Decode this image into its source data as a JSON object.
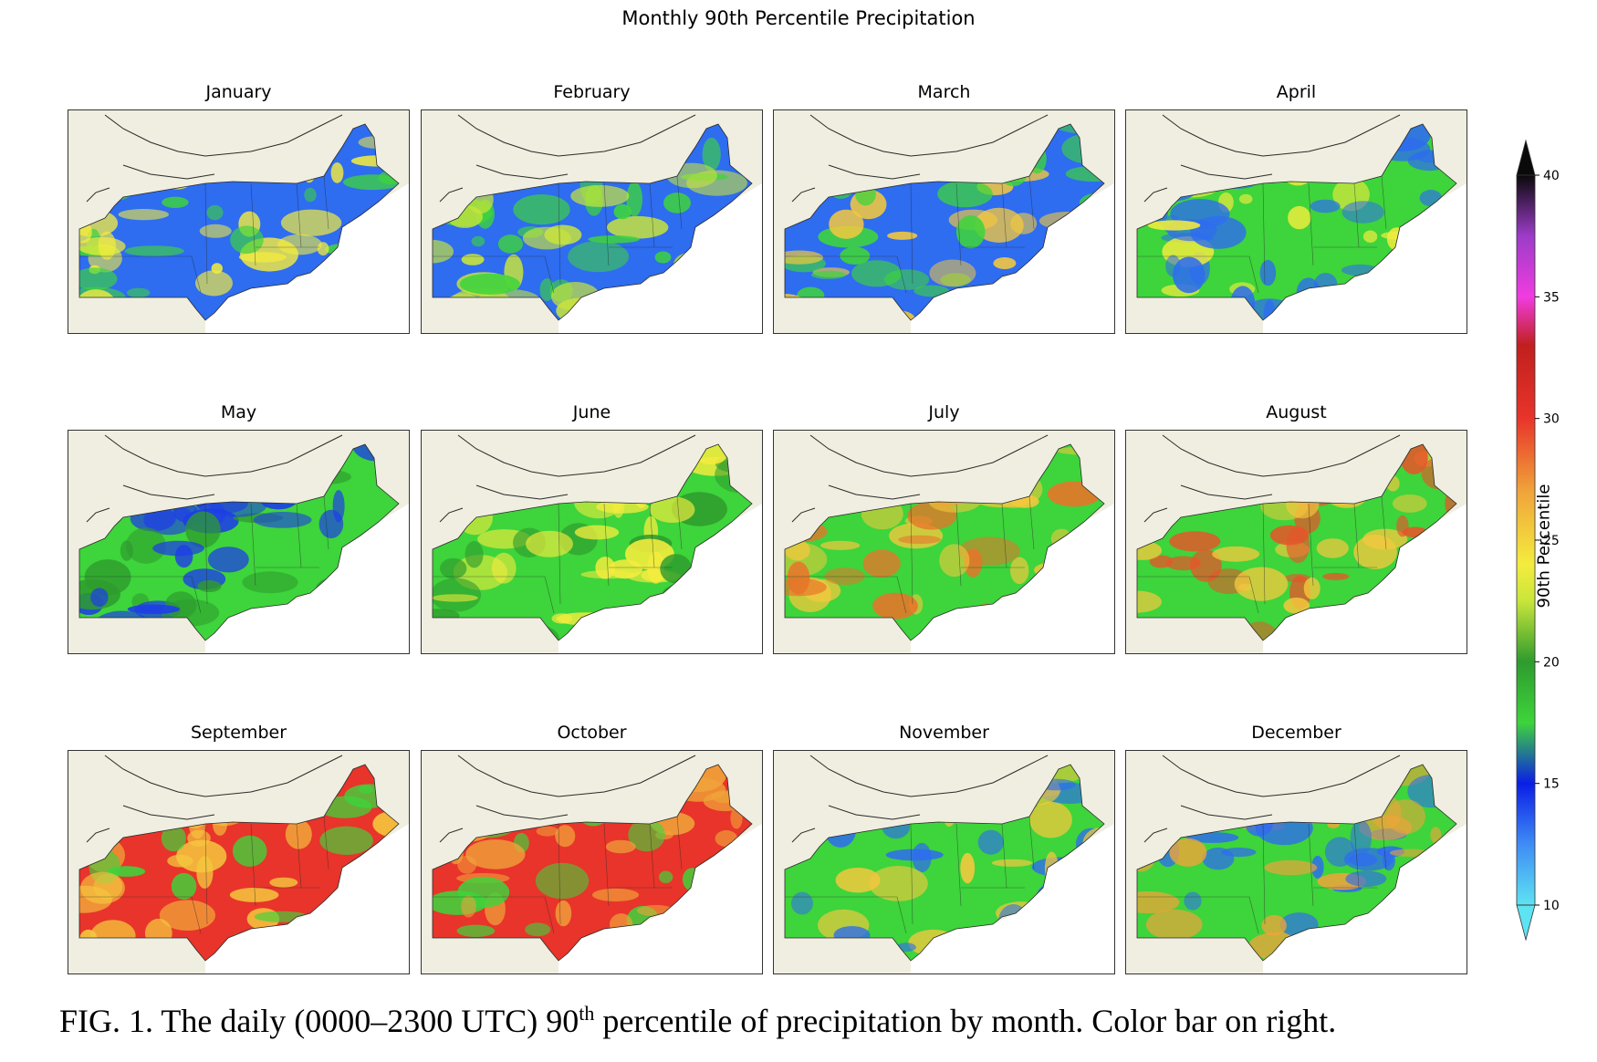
{
  "figure": {
    "title": "Monthly 90th Percentile Precipitation",
    "caption_parts": {
      "before": "FIG. 1. The daily (0000–2300 UTC) 90",
      "superscript": "th",
      "after": " percentile of precipitation by month. Color bar on right."
    }
  },
  "colorbar": {
    "label": "90th Percentile",
    "min": 10,
    "max": 40,
    "ticks": [
      "10",
      "15",
      "20",
      "25",
      "30",
      "35",
      "40"
    ],
    "extend": "both",
    "stops": [
      {
        "value": 10,
        "color": "#5ee3f2"
      },
      {
        "value": 12.5,
        "color": "#3f8cf5"
      },
      {
        "value": 15,
        "color": "#0a1ee6"
      },
      {
        "value": 17.5,
        "color": "#3ed43b"
      },
      {
        "value": 20,
        "color": "#2e9b2e"
      },
      {
        "value": 22.5,
        "color": "#c9e53a"
      },
      {
        "value": 24,
        "color": "#f4ec3e"
      },
      {
        "value": 27,
        "color": "#f0a43a"
      },
      {
        "value": 30,
        "color": "#e8342a"
      },
      {
        "value": 33,
        "color": "#c0201e"
      },
      {
        "value": 35,
        "color": "#f03ce0"
      },
      {
        "value": 37.5,
        "color": "#9c3cc8"
      },
      {
        "value": 40,
        "color": "#0a0a0a"
      }
    ]
  },
  "map_colors": {
    "land_background": "#efeee0",
    "water": "#ffffff",
    "border_line": "#2a2a2a"
  },
  "panels": [
    {
      "month": "January",
      "dominant_color": "#2e6cf0",
      "secondary_color": "#3ed43b",
      "accent_color": "#f4ec3e"
    },
    {
      "month": "February",
      "dominant_color": "#2e6cf0",
      "secondary_color": "#3ed43b",
      "accent_color": "#c9e53a"
    },
    {
      "month": "March",
      "dominant_color": "#2e6cf0",
      "secondary_color": "#3ed43b",
      "accent_color": "#f4c83e"
    },
    {
      "month": "April",
      "dominant_color": "#3ed43b",
      "secondary_color": "#2e6cf0",
      "accent_color": "#f4ec3e"
    },
    {
      "month": "May",
      "dominant_color": "#3ed43b",
      "secondary_color": "#1e3ee6",
      "accent_color": "#2e9b2e"
    },
    {
      "month": "June",
      "dominant_color": "#3ed43b",
      "secondary_color": "#f4ec3e",
      "accent_color": "#2e9b2e"
    },
    {
      "month": "July",
      "dominant_color": "#3ed43b",
      "secondary_color": "#f4c83e",
      "accent_color": "#e8742a"
    },
    {
      "month": "August",
      "dominant_color": "#3ed43b",
      "secondary_color": "#f4c83e",
      "accent_color": "#e8542a"
    },
    {
      "month": "September",
      "dominant_color": "#e8342a",
      "secondary_color": "#f4c83e",
      "accent_color": "#3ed43b"
    },
    {
      "month": "October",
      "dominant_color": "#e8342a",
      "secondary_color": "#f0a43a",
      "accent_color": "#3ed43b"
    },
    {
      "month": "November",
      "dominant_color": "#3ed43b",
      "secondary_color": "#2e6cf0",
      "accent_color": "#f4c83e"
    },
    {
      "month": "December",
      "dominant_color": "#3ed43b",
      "secondary_color": "#2e6cf0",
      "accent_color": "#f0a43a"
    }
  ]
}
